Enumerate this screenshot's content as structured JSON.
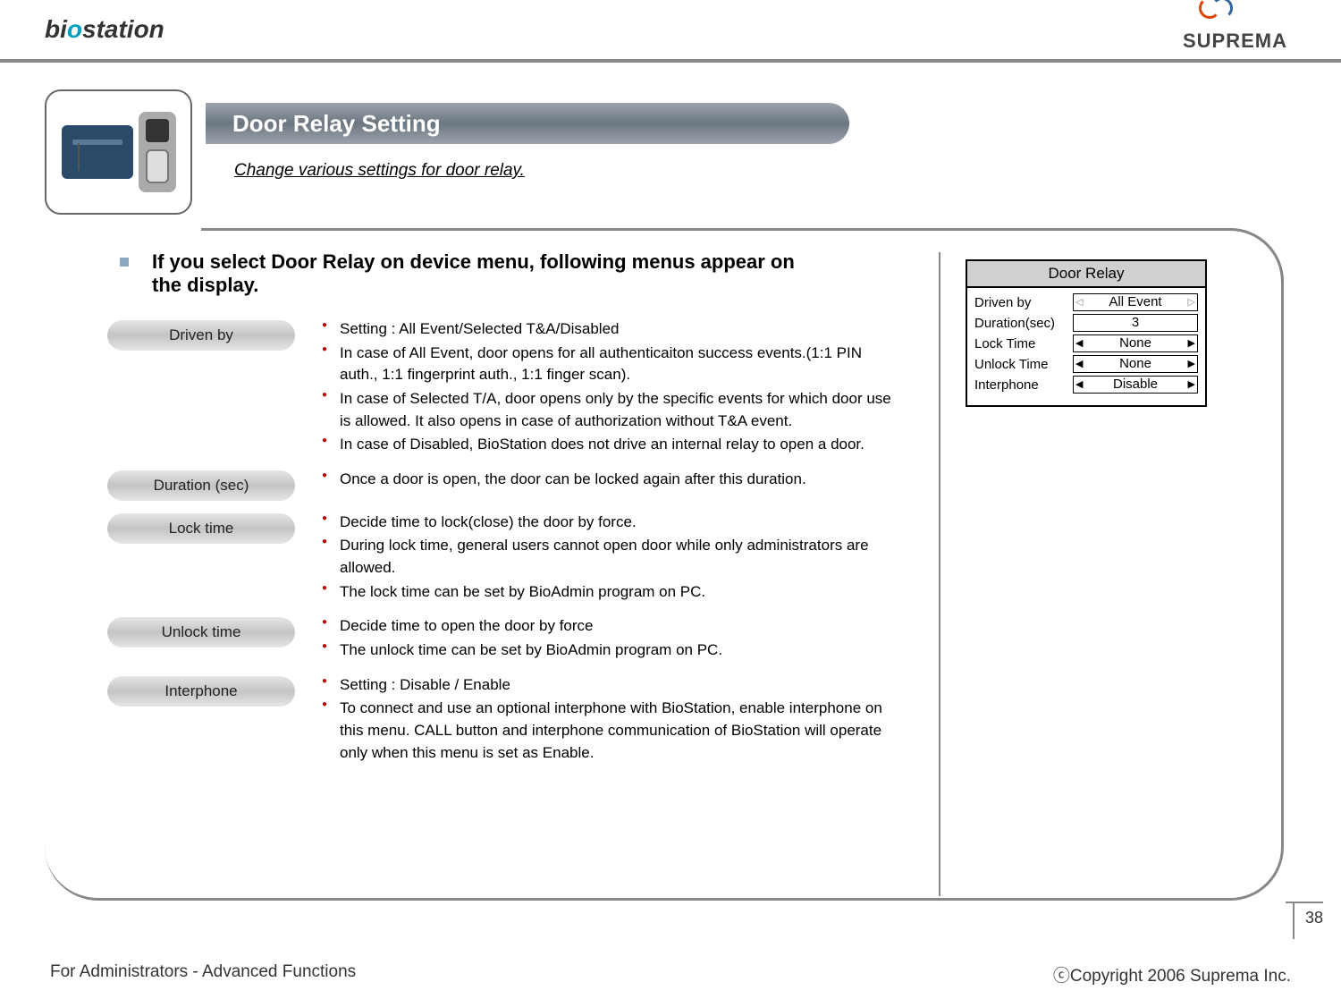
{
  "brand_left_prefix": "bi",
  "brand_left_mid": "o",
  "brand_left_suffix": "station",
  "brand_right": "SUPREMA",
  "title": "Door Relay Setting",
  "subtitle": "Change various settings for door relay.",
  "lead": "If you select Door Relay on device menu, following menus appear on the display.",
  "sections": [
    {
      "chip": "Driven by",
      "items": [
        "Setting : All Event/Selected T&A/Disabled",
        "In case of All Event, door opens for all authenticaiton success events.(1:1 PIN auth., 1:1 fingerprint auth., 1:1 finger scan).",
        "In case of Selected T/A, door opens only by the specific events for which door use is allowed. It also opens in case of authorization without T&A event.",
        "In case of Disabled, BioStation does not drive an internal relay to open a door."
      ]
    },
    {
      "chip": "Duration (sec)",
      "items": [
        "Once a door is open, the door can be locked again after this duration."
      ]
    },
    {
      "chip": "Lock time",
      "items": [
        "Decide time to lock(close) the door by force.",
        "During lock time, general users cannot open door while only administrators are allowed.",
        "The lock time can be set by BioAdmin program on PC."
      ]
    },
    {
      "chip": "Unlock time",
      "items": [
        "Decide time to open the door by force",
        "The unlock time can be set by BioAdmin program on PC."
      ]
    },
    {
      "chip": "Interphone",
      "items": [
        "Setting : Disable / Enable",
        "To connect and use an optional interphone with BioStation, enable interphone on this menu. CALL button and interphone communication of BioStation will operate only when this menu is set as Enable."
      ]
    }
  ],
  "lcd": {
    "title": "Door Relay",
    "rows": [
      {
        "label": "Driven by",
        "value": "All Event",
        "hollow": true
      },
      {
        "label": "Duration(sec)",
        "value": "3",
        "plain": true
      },
      {
        "label": "Lock Time",
        "value": "None"
      },
      {
        "label": "Unlock Time",
        "value": "None"
      },
      {
        "label": "Interphone",
        "value": "Disable"
      }
    ]
  },
  "page_number": "38",
  "footer_left": "For Administrators - Advanced Functions",
  "footer_right": "ⓒCopyright 2006 Suprema Inc."
}
